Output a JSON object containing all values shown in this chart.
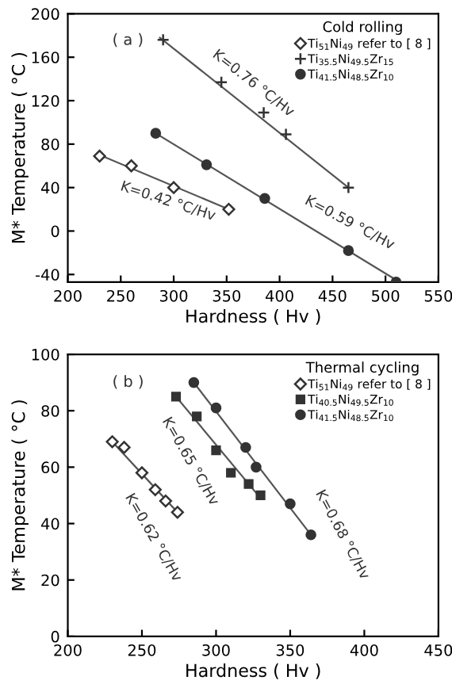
{
  "chart_data": [
    {
      "type": "scatter",
      "xlabel": "Hardness ( Hv )",
      "ylabel": "M* Temperature ( °C )",
      "legend_title": "Cold rolling",
      "legend": "top right",
      "grid": false,
      "xlim": [
        200,
        550
      ],
      "xticks": [
        200,
        250,
        300,
        350,
        400,
        450,
        500,
        550
      ],
      "ylim": [
        -47,
        200
      ],
      "yticks": [
        -40,
        0,
        40,
        80,
        120,
        160,
        200
      ],
      "annotations": [
        "( a )",
        "K=0.76 °C/Hv",
        "K=0.42 °C/Hv",
        "K=0.59 °C/Hv"
      ],
      "series": [
        {
          "name": "Ti$_{51}$Ni$_{49}$ refer to [ 8 ]",
          "marker": "diamond",
          "color": "#333333",
          "x": [
            230,
            260,
            300,
            352
          ],
          "values": [
            69,
            60,
            40,
            20
          ]
        },
        {
          "name": "Ti$_{35.5}$Ni$_{49.5}$Zr$_{15}$",
          "marker": "cross",
          "color": "#333333",
          "x": [
            290,
            345,
            385,
            406,
            465
          ],
          "values": [
            176,
            137,
            109,
            89,
            40
          ]
        },
        {
          "name": "Ti$_{41.5}$Ni$_{48.5}$Zr$_{10}$",
          "marker": "circle",
          "color": "#333333",
          "x": [
            283,
            331,
            386,
            465,
            510
          ],
          "values": [
            90,
            61,
            30,
            -18,
            -47
          ]
        },
        {
          "type": "line",
          "color": "#555555",
          "x": [
            230,
            352
          ],
          "values": [
            70,
            20
          ]
        },
        {
          "type": "line",
          "color": "#555555",
          "x": [
            287,
            465
          ],
          "values": [
            178,
            40
          ]
        },
        {
          "type": "line",
          "color": "#555555",
          "x": [
            283,
            510
          ],
          "values": [
            90,
            -45
          ]
        }
      ]
    },
    {
      "type": "scatter",
      "xlabel": "Hardness ( Hv )",
      "ylabel": "M* Temperature ( °C )",
      "legend_title": "Thermal cycling",
      "legend": "top right",
      "grid": false,
      "xlim": [
        200,
        450
      ],
      "xticks": [
        200,
        250,
        300,
        350,
        400,
        450
      ],
      "ylim": [
        0,
        100
      ],
      "yticks": [
        0,
        20,
        40,
        60,
        80,
        100
      ],
      "annotations": [
        "( b )",
        "K=0.62 °C/Hv",
        "K=0.65 °C/Hv",
        "K=0.68 °C/Hv"
      ],
      "series": [
        {
          "name": "Ti$_{51}$Ni$_{49}$ refer to [ 8 ]",
          "marker": "diamond",
          "color": "#333333",
          "x": [
            230,
            238,
            250,
            259,
            266,
            274
          ],
          "values": [
            69,
            67,
            58,
            52,
            48,
            44
          ]
        },
        {
          "name": "Ti$_{40.5}$Ni$_{49.5}$Zr$_{10}$",
          "marker": "square",
          "color": "#333333",
          "x": [
            273,
            287,
            300,
            310,
            322,
            330
          ],
          "values": [
            85,
            78,
            66,
            58,
            54,
            50
          ]
        },
        {
          "name": "Ti$_{41.5}$Ni$_{48.5}$Zr$_{10}$",
          "marker": "circle",
          "color": "#333333",
          "x": [
            285,
            300,
            320,
            327,
            350,
            364
          ],
          "values": [
            90,
            81,
            67,
            60,
            47,
            36
          ]
        },
        {
          "type": "line",
          "color": "#555555",
          "x": [
            230,
            274
          ],
          "values": [
            69,
            44
          ]
        },
        {
          "type": "line",
          "color": "#555555",
          "x": [
            273,
            330
          ],
          "values": [
            85,
            49
          ]
        },
        {
          "type": "line",
          "color": "#555555",
          "x": [
            285,
            364
          ],
          "values": [
            90,
            36
          ]
        }
      ]
    }
  ]
}
